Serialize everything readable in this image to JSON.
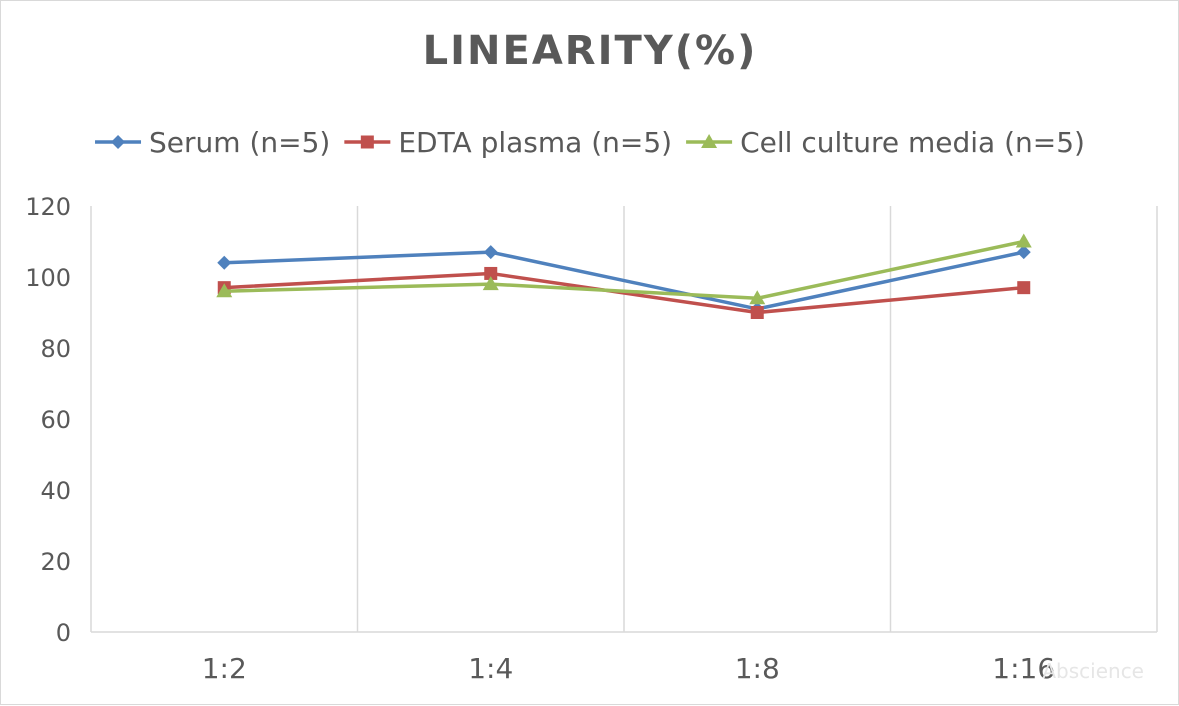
{
  "chart_data": {
    "type": "line",
    "title": "LINEARITY(%)",
    "xlabel": "",
    "ylabel": "",
    "categories": [
      "1:2",
      "1:4",
      "1:8",
      "1:16"
    ],
    "ylim": [
      0,
      120
    ],
    "yticks": [
      0,
      20,
      40,
      60,
      80,
      100,
      120
    ],
    "grid": "vertical",
    "legend_position": "top",
    "series": [
      {
        "name": "Serum (n=5)",
        "values": [
          104,
          107,
          91,
          107
        ],
        "color": "#4f81bd",
        "marker": "diamond"
      },
      {
        "name": "EDTA plasma (n=5)",
        "values": [
          97,
          101,
          90,
          97
        ],
        "color": "#c0504d",
        "marker": "square"
      },
      {
        "name": "Cell culture media (n=5)",
        "values": [
          96,
          98,
          94,
          110
        ],
        "color": "#9bbb59",
        "marker": "triangle"
      }
    ]
  },
  "watermark": "Abscience"
}
